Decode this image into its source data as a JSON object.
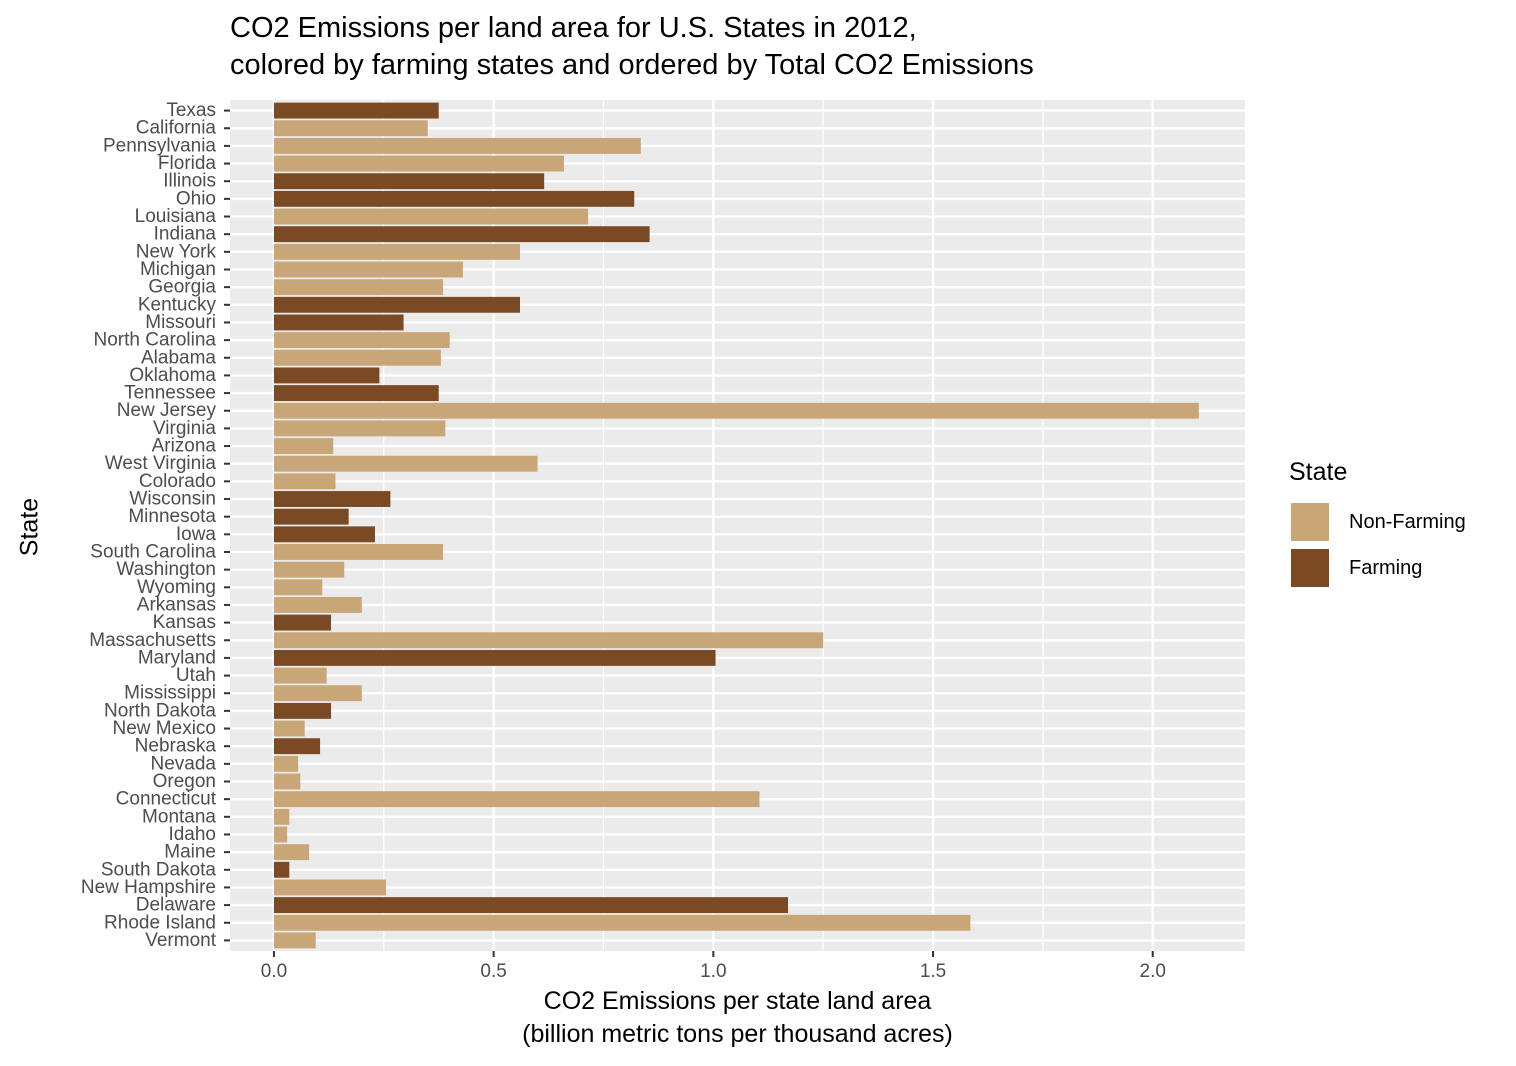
{
  "title": {
    "line1": "CO2 Emissions per land area for U.S. States in 2012,",
    "line2": "colored by farming states and ordered by Total CO2 Emissions"
  },
  "axes": {
    "xlabel_line1": "CO2 Emissions per state land area",
    "xlabel_line2": "(billion metric tons per thousand acres)",
    "ylabel": "State"
  },
  "legend": {
    "title": "State",
    "items": [
      {
        "label": "Non-Farming",
        "color": "#C8A677"
      },
      {
        "label": "Farming",
        "color": "#7A4A24"
      }
    ]
  },
  "colors": {
    "panel": "#EBEBEB",
    "grid": "#FFFFFF",
    "non_farming": "#C8A677",
    "farming": "#7A4A24"
  },
  "chart_data": {
    "type": "bar",
    "orientation": "horizontal",
    "title": "CO2 Emissions per land area for U.S. States in 2012, colored by farming states and ordered by Total CO2 Emissions",
    "xlabel": "CO2 Emissions per state land area (billion metric tons per thousand acres)",
    "ylabel": "State",
    "xlim": [
      -0.1,
      2.21
    ],
    "xticks": [
      0.0,
      0.5,
      1.0,
      1.5,
      2.0
    ],
    "xtick_labels": [
      "0.0",
      "0.5",
      "1.0",
      "1.5",
      "2.0"
    ],
    "grid": true,
    "legend_position": "right",
    "categories": [
      "Texas",
      "California",
      "Pennsylvania",
      "Florida",
      "Illinois",
      "Ohio",
      "Louisiana",
      "Indiana",
      "New York",
      "Michigan",
      "Georgia",
      "Kentucky",
      "Missouri",
      "North Carolina",
      "Alabama",
      "Oklahoma",
      "Tennessee",
      "New Jersey",
      "Virginia",
      "Arizona",
      "West Virginia",
      "Colorado",
      "Wisconsin",
      "Minnesota",
      "Iowa",
      "South Carolina",
      "Washington",
      "Wyoming",
      "Arkansas",
      "Kansas",
      "Massachusetts",
      "Maryland",
      "Utah",
      "Mississippi",
      "North Dakota",
      "New Mexico",
      "Nebraska",
      "Nevada",
      "Oregon",
      "Connecticut",
      "Montana",
      "Idaho",
      "Maine",
      "South Dakota",
      "New Hampshire",
      "Delaware",
      "Rhode Island",
      "Vermont"
    ],
    "values": [
      0.375,
      0.35,
      0.835,
      0.66,
      0.615,
      0.82,
      0.715,
      0.855,
      0.56,
      0.43,
      0.385,
      0.56,
      0.295,
      0.4,
      0.38,
      0.24,
      0.375,
      2.105,
      0.39,
      0.135,
      0.6,
      0.14,
      0.265,
      0.17,
      0.23,
      0.385,
      0.16,
      0.11,
      0.2,
      0.13,
      1.25,
      1.005,
      0.12,
      0.2,
      0.13,
      0.07,
      0.105,
      0.055,
      0.06,
      1.105,
      0.035,
      0.03,
      0.08,
      0.035,
      0.255,
      1.17,
      1.585,
      0.095
    ],
    "group": [
      "Farming",
      "Non-Farming",
      "Non-Farming",
      "Non-Farming",
      "Farming",
      "Farming",
      "Non-Farming",
      "Farming",
      "Non-Farming",
      "Non-Farming",
      "Non-Farming",
      "Farming",
      "Farming",
      "Non-Farming",
      "Non-Farming",
      "Farming",
      "Farming",
      "Non-Farming",
      "Non-Farming",
      "Non-Farming",
      "Non-Farming",
      "Non-Farming",
      "Farming",
      "Farming",
      "Farming",
      "Non-Farming",
      "Non-Farming",
      "Non-Farming",
      "Non-Farming",
      "Farming",
      "Non-Farming",
      "Farming",
      "Non-Farming",
      "Non-Farming",
      "Farming",
      "Non-Farming",
      "Farming",
      "Non-Farming",
      "Non-Farming",
      "Non-Farming",
      "Non-Farming",
      "Non-Farming",
      "Non-Farming",
      "Farming",
      "Non-Farming",
      "Farming",
      "Non-Farming",
      "Non-Farming"
    ]
  }
}
